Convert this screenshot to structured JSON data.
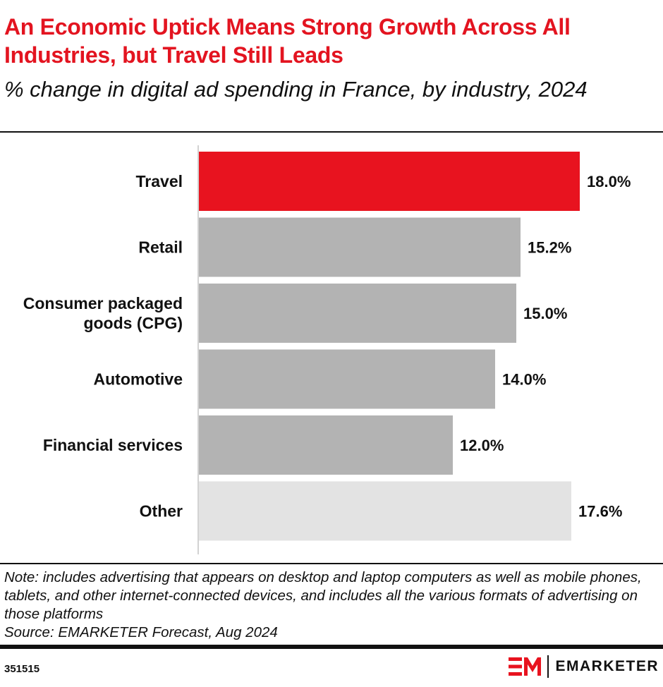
{
  "title": "An Economic Uptick Means Strong Growth Across All Industries, but Travel Still Leads",
  "subtitle": "% change in digital ad spending in France, by industry, 2024",
  "note": "Note: includes advertising that appears on desktop and laptop computers as well as mobile phones, tablets, and other internet-connected devices, and includes all the various formats of advertising on those platforms",
  "source": "Source: EMARKETER Forecast, Aug 2024",
  "chart_id": "351515",
  "brand": "EMARKETER",
  "logo_icon": "em-logo-icon",
  "colors": {
    "accent": "#e8131f",
    "primary_bar": "#b3b3b3",
    "other_bar": "#e3e3e3",
    "axis": "#d2d2d2"
  },
  "chart_data": {
    "type": "bar",
    "orientation": "horizontal",
    "title": "An Economic Uptick Means Strong Growth Across All Industries, but Travel Still Leads",
    "subtitle": "% change in digital ad spending in France, by industry, 2024",
    "categories": [
      [
        "Travel"
      ],
      [
        "Retail"
      ],
      [
        "Consumer packaged",
        "goods (CPG)"
      ],
      [
        "Automotive"
      ],
      [
        "Financial services"
      ],
      [
        "Other"
      ]
    ],
    "values": [
      18.0,
      15.2,
      15.0,
      14.0,
      12.0,
      17.6
    ],
    "value_labels": [
      "18.0%",
      "15.2%",
      "15.0%",
      "14.0%",
      "12.0%",
      "17.6%"
    ],
    "bar_colors": [
      "#e8131f",
      "#b3b3b3",
      "#b3b3b3",
      "#b3b3b3",
      "#b3b3b3",
      "#e3e3e3"
    ],
    "xlim": [
      0,
      18
    ],
    "grid": false,
    "legend": "none"
  }
}
